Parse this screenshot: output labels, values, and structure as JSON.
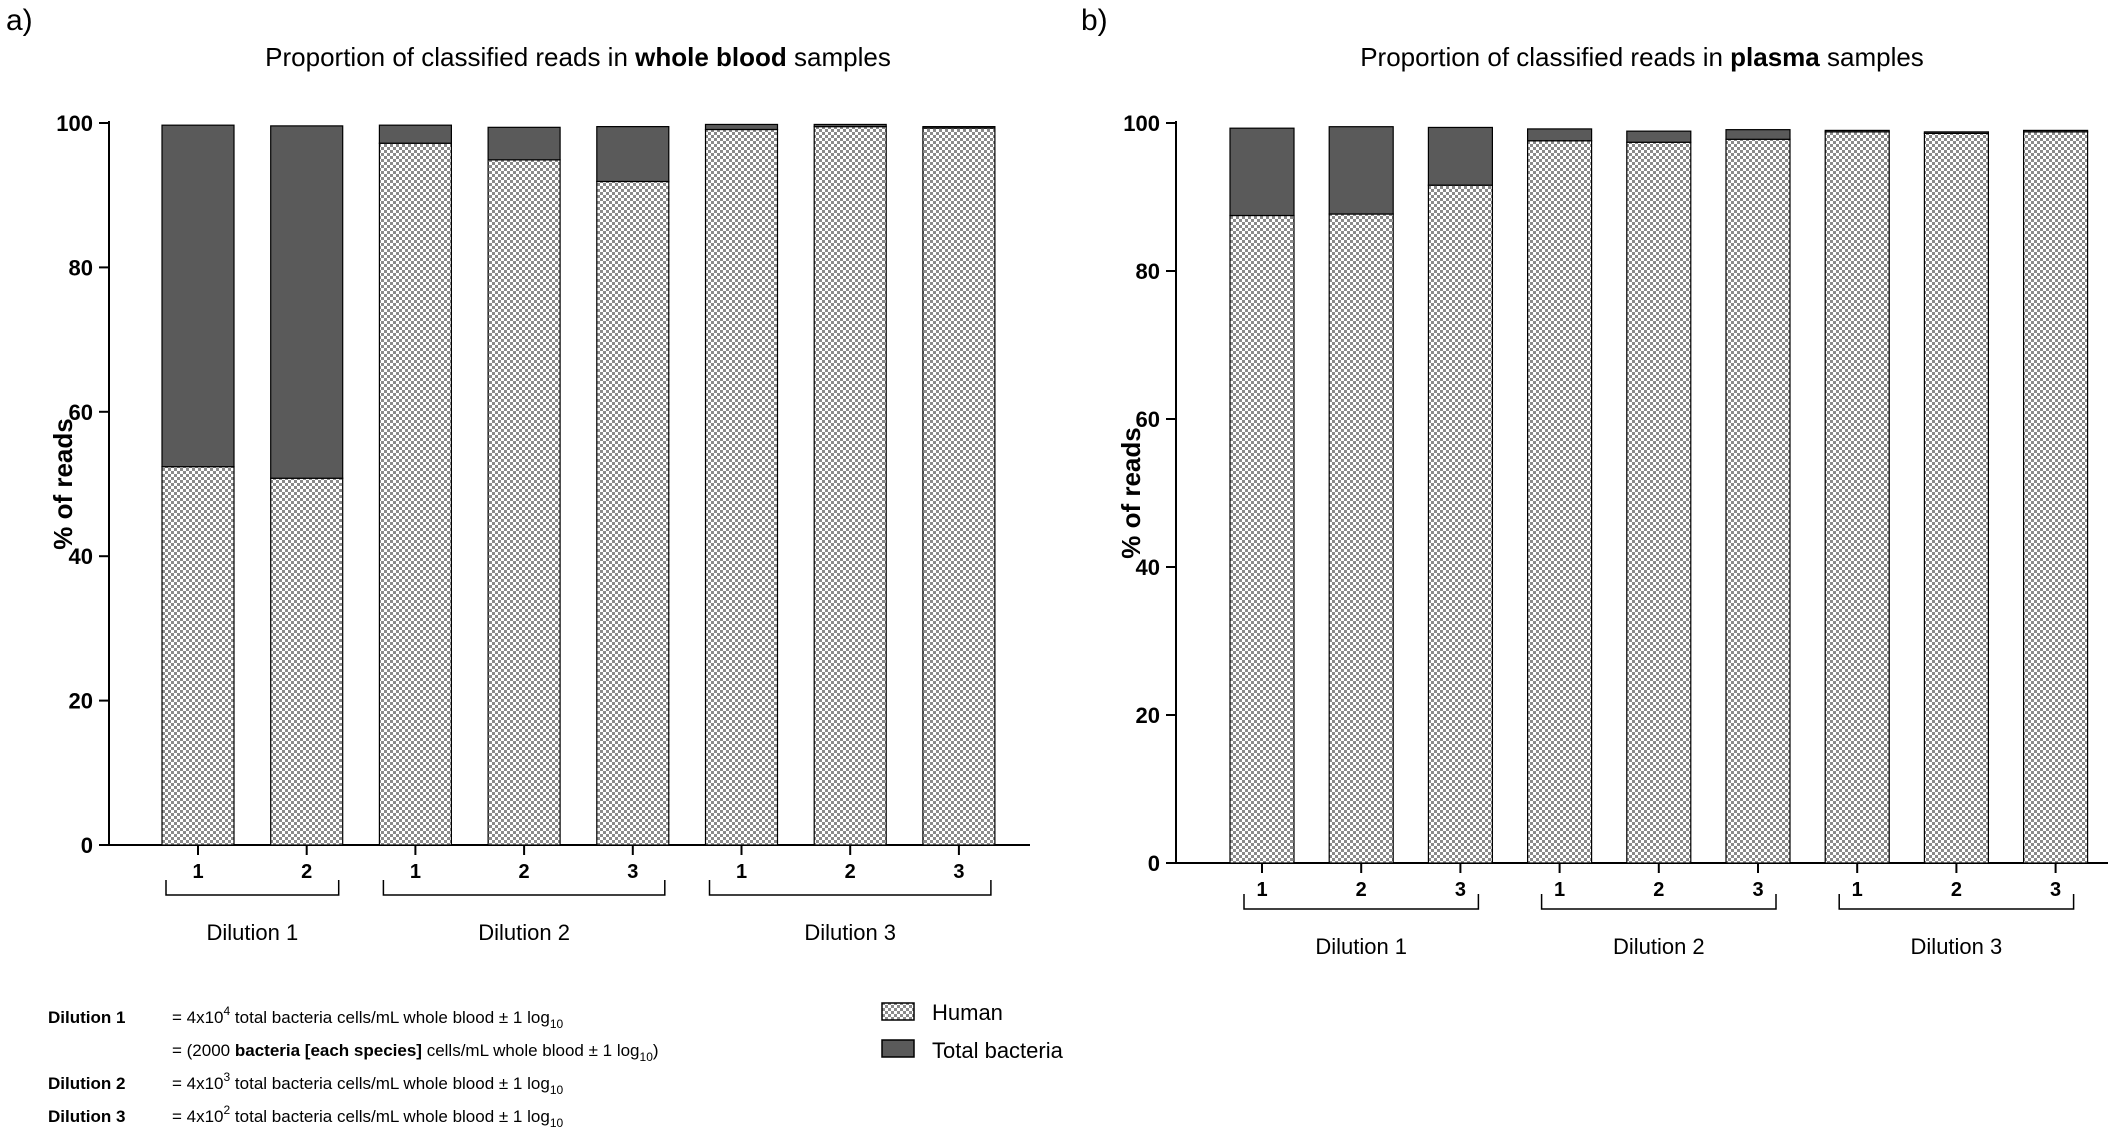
{
  "panels": [
    {
      "label": "a)",
      "title_pre": "Proportion of classified reads in ",
      "title_bold": "whole blood",
      "title_post": " samples"
    },
    {
      "label": "b)",
      "title_pre": "Proportion of classified reads in ",
      "title_bold": "plasma",
      "title_post": " samples"
    }
  ],
  "colors": {
    "human_fill": "#ffffff",
    "human_pattern": "#8a8a8a",
    "bacteria": "#5a5a5a",
    "axis": "#000000"
  },
  "legend": [
    {
      "label": "Human",
      "style": "checker"
    },
    {
      "label": "Total bacteria",
      "style": "solid-dark"
    }
  ],
  "notes": {
    "d1_label": "Dilution 1",
    "d1_eq": "= 4x10",
    "d1_exp": "4",
    "d1_rest": " total bacteria cells/mL whole blood ± 1 log",
    "d1_sub": "10",
    "d1b_pre": "= (2000 ",
    "d1b_bold": "bacteria [each species]",
    "d1b_rest": " cells/mL whole blood ± 1 log",
    "d1b_sub": "10",
    "d1b_close": ")",
    "d2_label": "Dilution 2",
    "d2_eq": "= 4x10",
    "d2_exp": "3",
    "d2_rest": " total bacteria cells/mL whole blood ± 1 log",
    "d2_sub": "10",
    "d3_label": "Dilution 3",
    "d3_eq": "= 4x10",
    "d3_exp": "2",
    "d3_rest": " total bacteria cells/mL whole blood ± 1 log",
    "d3_sub": "10"
  },
  "chart_data": [
    {
      "type": "bar",
      "stacked": true,
      "title": "Proportion of classified reads in whole blood samples",
      "ylabel": "% of reads",
      "ylim": [
        0,
        100
      ],
      "yticks": [
        0,
        20,
        40,
        60,
        80,
        100
      ],
      "categories": [
        "1",
        "2",
        "1",
        "2",
        "3",
        "1",
        "2",
        "3"
      ],
      "groups": [
        {
          "label": "Dilution 1",
          "count": 2
        },
        {
          "label": "Dilution 2",
          "count": 3
        },
        {
          "label": "Dilution 3",
          "count": 3
        }
      ],
      "series": [
        {
          "name": "Human",
          "values": [
            52.4,
            50.8,
            97.2,
            94.9,
            91.9,
            99.1,
            99.5,
            99.3
          ]
        },
        {
          "name": "Total bacteria",
          "values": [
            47.3,
            48.8,
            2.5,
            4.5,
            7.6,
            0.7,
            0.3,
            0.2
          ]
        }
      ]
    },
    {
      "type": "bar",
      "stacked": true,
      "title": "Proportion of classified reads in plasma samples",
      "ylabel": "% of reads",
      "ylim": [
        0,
        100
      ],
      "yticks": [
        0,
        20,
        40,
        60,
        80,
        100
      ],
      "categories": [
        "1",
        "2",
        "3",
        "1",
        "2",
        "3",
        "1",
        "2",
        "3"
      ],
      "groups": [
        {
          "label": "Dilution 1",
          "count": 3
        },
        {
          "label": "Dilution 2",
          "count": 3
        },
        {
          "label": "Dilution 3",
          "count": 3
        }
      ],
      "series": [
        {
          "name": "Human",
          "values": [
            87.5,
            87.7,
            91.6,
            97.6,
            97.4,
            97.8,
            98.8,
            98.6,
            98.8
          ]
        },
        {
          "name": "Total bacteria",
          "values": [
            11.8,
            11.8,
            7.8,
            1.6,
            1.5,
            1.3,
            0.2,
            0.2,
            0.2
          ]
        }
      ]
    }
  ]
}
